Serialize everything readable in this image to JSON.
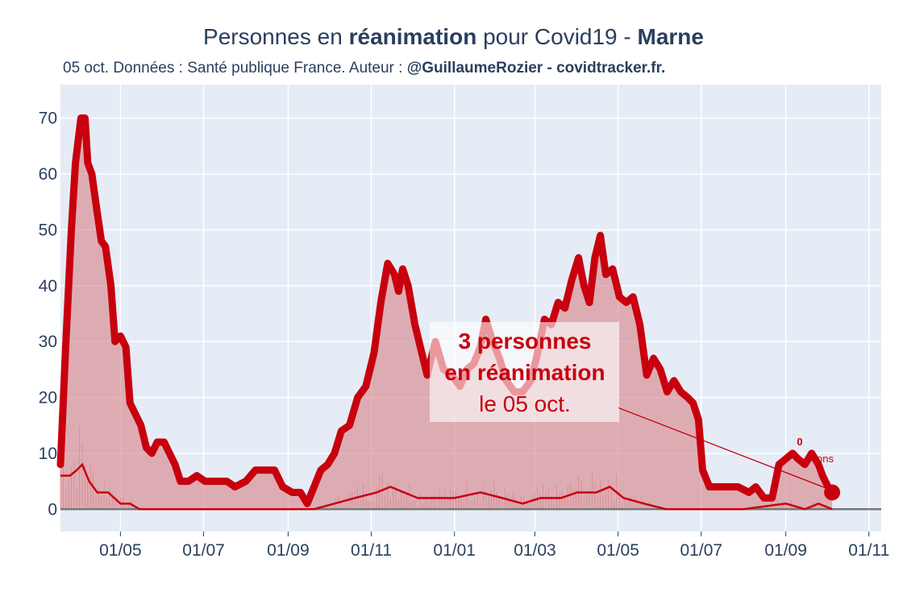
{
  "header": {
    "title_prefix": "Personnes en ",
    "title_bold1": "réanimation",
    "title_mid": " pour Covid19 - ",
    "title_bold2": "Marne",
    "subtitle_prefix": "05 oct. Données : Santé publique France. Auteur : ",
    "subtitle_bold": "@GuillaumeRozier - covidtracker.fr."
  },
  "annotation": {
    "line1": "3 personnes",
    "line2": "en réanimation",
    "line3": "le 05 oct."
  },
  "secondary_label": {
    "value": "0",
    "text": "ons"
  },
  "colors": {
    "plot_bg": "#e5ecf6",
    "main_line": "#c8000e",
    "area_fill": "#d88a8f",
    "text": "#2a3f5f"
  },
  "chart_data": {
    "type": "area",
    "xlabel": "",
    "ylabel": "",
    "ylim": [
      -4,
      76
    ],
    "xlim": [
      "2020-03-18",
      "2021-11-10"
    ],
    "yticks": [
      0,
      10,
      20,
      30,
      40,
      50,
      60,
      70
    ],
    "xticks": [
      {
        "date": "2020-05-01",
        "label": "01/05"
      },
      {
        "date": "2020-07-01",
        "label": "01/07"
      },
      {
        "date": "2020-09-01",
        "label": "01/09"
      },
      {
        "date": "2020-11-01",
        "label": "01/11"
      },
      {
        "date": "2021-01-01",
        "label": "01/01"
      },
      {
        "date": "2021-03-01",
        "label": "01/03"
      },
      {
        "date": "2021-05-01",
        "label": "01/05"
      },
      {
        "date": "2021-07-01",
        "label": "01/07"
      },
      {
        "date": "2021-09-01",
        "label": "01/09"
      },
      {
        "date": "2021-11-01",
        "label": "01/11"
      }
    ],
    "grid": true,
    "series": [
      {
        "role": "reanimation",
        "points": [
          [
            "2020-03-18",
            8
          ],
          [
            "2020-03-22",
            30
          ],
          [
            "2020-03-26",
            50
          ],
          [
            "2020-03-29",
            62
          ],
          [
            "2020-04-02",
            70
          ],
          [
            "2020-04-05",
            70
          ],
          [
            "2020-04-07",
            62
          ],
          [
            "2020-04-10",
            60
          ],
          [
            "2020-04-14",
            53
          ],
          [
            "2020-04-17",
            48
          ],
          [
            "2020-04-20",
            47
          ],
          [
            "2020-04-24",
            40
          ],
          [
            "2020-04-27",
            30
          ],
          [
            "2020-05-01",
            31
          ],
          [
            "2020-05-05",
            29
          ],
          [
            "2020-05-08",
            19
          ],
          [
            "2020-05-12",
            17
          ],
          [
            "2020-05-16",
            15
          ],
          [
            "2020-05-20",
            11
          ],
          [
            "2020-05-24",
            10
          ],
          [
            "2020-05-28",
            12
          ],
          [
            "2020-06-02",
            12
          ],
          [
            "2020-06-06",
            10
          ],
          [
            "2020-06-10",
            8
          ],
          [
            "2020-06-14",
            5
          ],
          [
            "2020-06-20",
            5
          ],
          [
            "2020-06-26",
            6
          ],
          [
            "2020-07-02",
            5
          ],
          [
            "2020-07-10",
            5
          ],
          [
            "2020-07-18",
            5
          ],
          [
            "2020-07-24",
            4
          ],
          [
            "2020-08-01",
            5
          ],
          [
            "2020-08-08",
            7
          ],
          [
            "2020-08-15",
            7
          ],
          [
            "2020-08-22",
            7
          ],
          [
            "2020-08-28",
            4
          ],
          [
            "2020-09-04",
            3
          ],
          [
            "2020-09-10",
            3
          ],
          [
            "2020-09-15",
            1
          ],
          [
            "2020-09-20",
            4
          ],
          [
            "2020-09-25",
            7
          ],
          [
            "2020-09-30",
            8
          ],
          [
            "2020-10-05",
            10
          ],
          [
            "2020-10-10",
            14
          ],
          [
            "2020-10-16",
            15
          ],
          [
            "2020-10-22",
            20
          ],
          [
            "2020-10-28",
            22
          ],
          [
            "2020-11-03",
            28
          ],
          [
            "2020-11-08",
            37
          ],
          [
            "2020-11-13",
            44
          ],
          [
            "2020-11-18",
            42
          ],
          [
            "2020-11-21",
            39
          ],
          [
            "2020-11-24",
            43
          ],
          [
            "2020-11-28",
            40
          ],
          [
            "2020-12-03",
            33
          ],
          [
            "2020-12-07",
            29
          ],
          [
            "2020-12-12",
            24
          ],
          [
            "2020-12-18",
            30
          ],
          [
            "2020-12-24",
            25
          ],
          [
            "2020-12-30",
            24
          ],
          [
            "2021-01-05",
            22
          ],
          [
            "2021-01-10",
            25
          ],
          [
            "2021-01-15",
            26
          ],
          [
            "2021-01-20",
            29
          ],
          [
            "2021-01-24",
            34
          ],
          [
            "2021-01-29",
            30
          ],
          [
            "2021-02-03",
            27
          ],
          [
            "2021-02-08",
            23
          ],
          [
            "2021-02-14",
            21
          ],
          [
            "2021-02-20",
            21
          ],
          [
            "2021-02-26",
            23
          ],
          [
            "2021-03-03",
            28
          ],
          [
            "2021-03-08",
            34
          ],
          [
            "2021-03-13",
            33
          ],
          [
            "2021-03-18",
            37
          ],
          [
            "2021-03-23",
            36
          ],
          [
            "2021-03-28",
            41
          ],
          [
            "2021-04-02",
            45
          ],
          [
            "2021-04-06",
            40
          ],
          [
            "2021-04-10",
            37
          ],
          [
            "2021-04-14",
            45
          ],
          [
            "2021-04-18",
            49
          ],
          [
            "2021-04-22",
            42
          ],
          [
            "2021-04-27",
            43
          ],
          [
            "2021-05-02",
            38
          ],
          [
            "2021-05-07",
            37
          ],
          [
            "2021-05-12",
            38
          ],
          [
            "2021-05-17",
            33
          ],
          [
            "2021-05-22",
            24
          ],
          [
            "2021-05-27",
            27
          ],
          [
            "2021-06-01",
            25
          ],
          [
            "2021-06-06",
            21
          ],
          [
            "2021-06-11",
            23
          ],
          [
            "2021-06-16",
            21
          ],
          [
            "2021-06-21",
            20
          ],
          [
            "2021-06-25",
            19
          ],
          [
            "2021-06-29",
            16
          ],
          [
            "2021-07-02",
            7
          ],
          [
            "2021-07-07",
            4
          ],
          [
            "2021-07-12",
            4
          ],
          [
            "2021-07-20",
            4
          ],
          [
            "2021-07-28",
            4
          ],
          [
            "2021-08-05",
            3
          ],
          [
            "2021-08-10",
            4
          ],
          [
            "2021-08-16",
            2
          ],
          [
            "2021-08-22",
            2
          ],
          [
            "2021-08-27",
            8
          ],
          [
            "2021-09-01",
            9
          ],
          [
            "2021-09-06",
            10
          ],
          [
            "2021-09-10",
            9
          ],
          [
            "2021-09-15",
            8
          ],
          [
            "2021-09-20",
            10
          ],
          [
            "2021-09-25",
            8
          ],
          [
            "2021-09-28",
            6
          ],
          [
            "2021-10-02",
            4
          ],
          [
            "2021-10-05",
            3
          ]
        ]
      },
      {
        "role": "new-admissions-7day",
        "points": [
          [
            "2020-03-18",
            6
          ],
          [
            "2020-03-25",
            6
          ],
          [
            "2020-03-30",
            7
          ],
          [
            "2020-04-03",
            8
          ],
          [
            "2020-04-08",
            5
          ],
          [
            "2020-04-14",
            3
          ],
          [
            "2020-04-22",
            3
          ],
          [
            "2020-05-01",
            1
          ],
          [
            "2020-05-08",
            1
          ],
          [
            "2020-05-15",
            0
          ],
          [
            "2020-06-01",
            0
          ],
          [
            "2020-07-01",
            0
          ],
          [
            "2020-08-01",
            0
          ],
          [
            "2020-09-01",
            0
          ],
          [
            "2020-09-20",
            0
          ],
          [
            "2020-10-05",
            1
          ],
          [
            "2020-10-20",
            2
          ],
          [
            "2020-11-05",
            3
          ],
          [
            "2020-11-15",
            4
          ],
          [
            "2020-11-25",
            3
          ],
          [
            "2020-12-05",
            2
          ],
          [
            "2020-12-15",
            2
          ],
          [
            "2021-01-01",
            2
          ],
          [
            "2021-01-20",
            3
          ],
          [
            "2021-02-05",
            2
          ],
          [
            "2021-02-20",
            1
          ],
          [
            "2021-03-05",
            2
          ],
          [
            "2021-03-20",
            2
          ],
          [
            "2021-04-01",
            3
          ],
          [
            "2021-04-15",
            3
          ],
          [
            "2021-04-25",
            4
          ],
          [
            "2021-05-05",
            2
          ],
          [
            "2021-05-20",
            1
          ],
          [
            "2021-06-05",
            0
          ],
          [
            "2021-07-01",
            0
          ],
          [
            "2021-08-01",
            0
          ],
          [
            "2021-09-01",
            1
          ],
          [
            "2021-09-15",
            0
          ],
          [
            "2021-09-25",
            1
          ],
          [
            "2021-10-05",
            0
          ]
        ]
      }
    ],
    "last_point": {
      "date": "2021-10-05",
      "value": 3
    }
  }
}
